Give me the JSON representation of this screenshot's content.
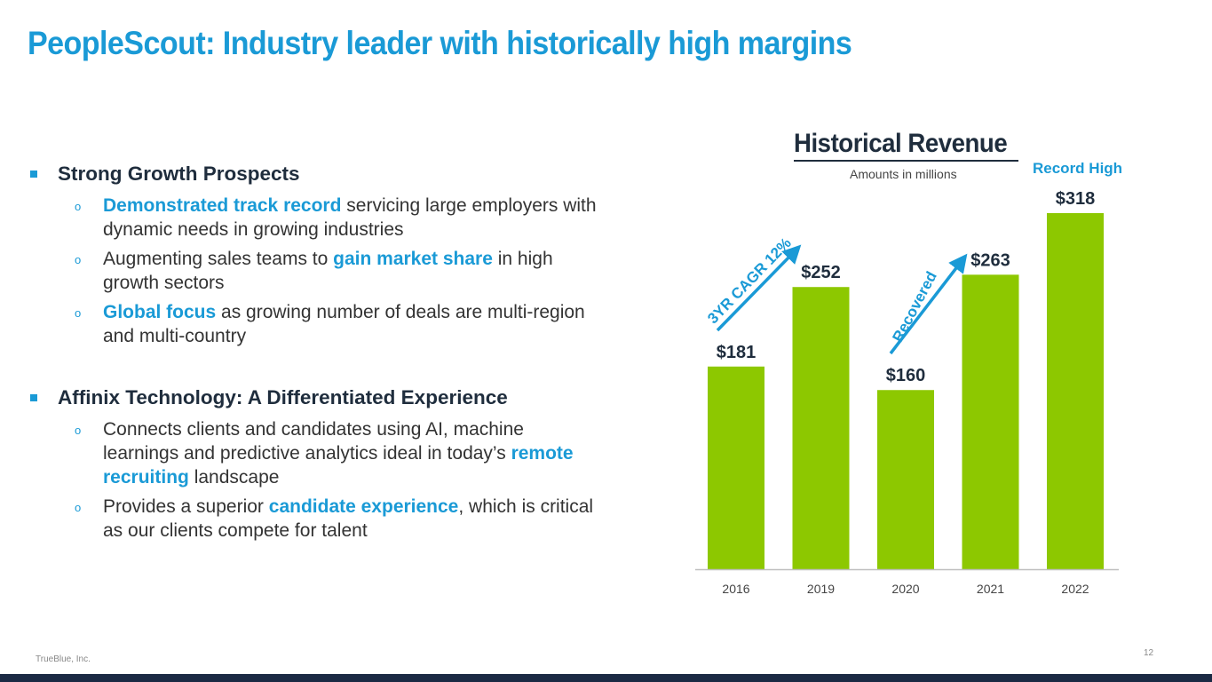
{
  "slide": {
    "title": "PeopleScout: Industry leader with historically high margins",
    "sections": [
      {
        "heading": "Strong Growth Prospects",
        "items": [
          {
            "hl": "Demonstrated track record",
            "text": " servicing large employers with dynamic needs in growing industries"
          },
          {
            "pre": "Augmenting sales teams to ",
            "hl": "gain market share",
            "post": " in high growth sectors"
          },
          {
            "hl": "Global focus",
            "text": " as growing number of deals are multi-region and multi-country"
          }
        ]
      },
      {
        "heading": "Affinix Technology: A Differentiated Experience",
        "items": [
          {
            "pre": "Connects clients and candidates using AI, machine learnings and predictive analytics ideal in today’s ",
            "hl": "remote recruiting",
            "post": " landscape"
          },
          {
            "pre": "Provides a superior ",
            "hl": "candidate experience",
            "post": ", which is critical as our clients compete for talent"
          }
        ]
      }
    ],
    "footer_left": "TrueBlue, Inc.",
    "page_number": "12"
  },
  "chart_data": {
    "type": "bar",
    "title": "Historical Revenue",
    "subtitle": "Amounts in millions",
    "categories": [
      "2016",
      "2019",
      "2020",
      "2021",
      "2022"
    ],
    "values": [
      181,
      252,
      160,
      263,
      318
    ],
    "labels": [
      "$181",
      "$252",
      "$160",
      "$263",
      "$318"
    ],
    "ylim": [
      0,
      318
    ],
    "xlabel": "",
    "ylabel": "",
    "annotations": {
      "record_high": "Record High",
      "cagr": "3YR CAGR 12%",
      "recovered": "Recovered"
    }
  },
  "colors": {
    "accent": "#1a9ad6",
    "bar": "#8dc800",
    "dark": "#1f2d3d",
    "footer_bar": "#1b2a44"
  }
}
